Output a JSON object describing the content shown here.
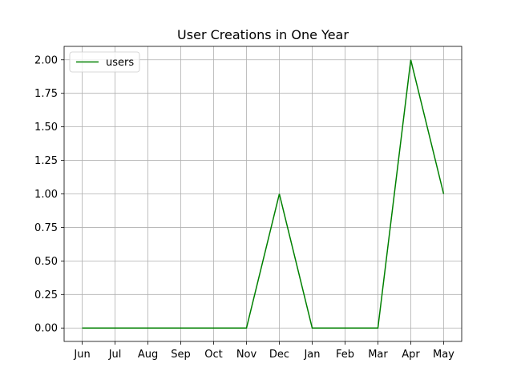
{
  "chart_data": {
    "type": "line",
    "title": "User Creations in One Year",
    "xlabel": "",
    "ylabel": "",
    "categories": [
      "Jun",
      "Jul",
      "Aug",
      "Sep",
      "Oct",
      "Nov",
      "Dec",
      "Jan",
      "Feb",
      "Mar",
      "Apr",
      "May"
    ],
    "series": [
      {
        "name": "users",
        "values": [
          0,
          0,
          0,
          0,
          0,
          0,
          1,
          0,
          0,
          0,
          2,
          1
        ],
        "color": "#008000"
      }
    ],
    "y_ticks": [
      "0.00",
      "0.25",
      "0.50",
      "0.75",
      "1.00",
      "1.25",
      "1.50",
      "1.75",
      "2.00"
    ],
    "ylim": [
      -0.1,
      2.1
    ],
    "grid": true,
    "legend_position": "top-left",
    "grid_color": "#b0b0b0"
  }
}
